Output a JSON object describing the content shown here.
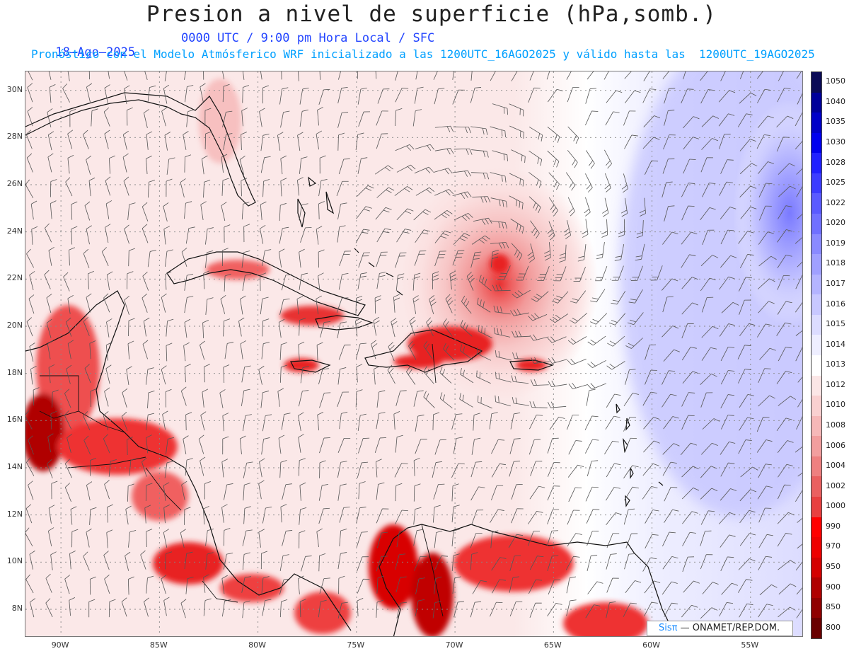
{
  "title": "Presion a nivel de superficie (hPa,somb.)",
  "date": "18—Ago—2025",
  "valid_time": "0000 UTC / 9:00 pm Hora Local / SFC",
  "model_line": "Pronóstico con el Modelo Atmósferico WRF inicializado a las 1200UTC_16AGO2025 y válido hasta las  1200UTC_19AGO2025",
  "map": {
    "lat_labels": [
      "30N",
      "28N",
      "26N",
      "24N",
      "22N",
      "20N",
      "18N",
      "16N",
      "14N",
      "12N",
      "10N",
      "8N"
    ],
    "lon_labels": [
      "90W",
      "85W",
      "80W",
      "75W",
      "70W",
      "65W",
      "60W",
      "55W"
    ],
    "lat_values": [
      30,
      28,
      26,
      24,
      22,
      20,
      18,
      16,
      14,
      12,
      10,
      8
    ],
    "lon_values": [
      -90,
      -85,
      -80,
      -75,
      -70,
      -65,
      -60,
      -55
    ],
    "extent": {
      "lon_min": -91.8,
      "lon_max": -52.3,
      "lat_min": 6.8,
      "lat_max": 30.8
    },
    "storm_center": {
      "lon": -67.7,
      "lat": 22.6
    },
    "high_pressure_center": {
      "lon": -53.5,
      "lat": 25.8
    }
  },
  "colorbar": {
    "levels": [
      "1050",
      "1040",
      "1035",
      "1030",
      "1028",
      "1025",
      "1022",
      "1020",
      "1019",
      "1018",
      "1017",
      "1016",
      "1015",
      "1014",
      "1013",
      "1012",
      "1010",
      "1008",
      "1006",
      "1004",
      "1002",
      "1000",
      "990",
      "970",
      "950",
      "900",
      "850",
      "800"
    ],
    "colors": [
      "#0b0b56",
      "#00009a",
      "#0000c8",
      "#0000ee",
      "#2020ff",
      "#3c3cff",
      "#5a5aff",
      "#7070ff",
      "#8a8aff",
      "#a0a0ff",
      "#b4b4ff",
      "#c8c8ff",
      "#dcdcff",
      "#eeeeff",
      "#ffffff",
      "#fbe6e6",
      "#f9d0d0",
      "#f6b8b8",
      "#f29e9e",
      "#ee8080",
      "#ea6060",
      "#e84040",
      "#ff0000",
      "#ee0000",
      "#d40000",
      "#b00000",
      "#900000",
      "#6a0000"
    ]
  },
  "credit": {
    "brand": "Sisπ",
    "text": " — ONAMET/REP.DOM."
  }
}
